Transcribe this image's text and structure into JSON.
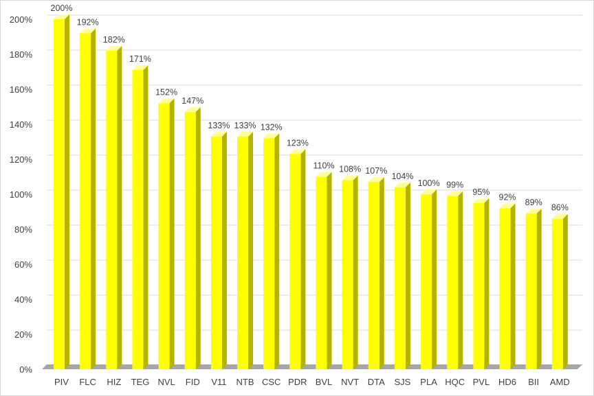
{
  "chart_data": {
    "type": "bar",
    "style": "3d-column",
    "categories": [
      "PIV",
      "FLC",
      "HIZ",
      "TEG",
      "NVL",
      "FID",
      "V11",
      "NTB",
      "CSC",
      "PDR",
      "BVL",
      "NVT",
      "DTA",
      "SJS",
      "PLA",
      "HQC",
      "PVL",
      "HD6",
      "BII",
      "AMD"
    ],
    "values": [
      200,
      192,
      182,
      171,
      152,
      147,
      133,
      133,
      132,
      123,
      110,
      108,
      107,
      104,
      100,
      99,
      95,
      92,
      89,
      86
    ],
    "data_labels": [
      "200%",
      "192%",
      "182%",
      "171%",
      "152%",
      "147%",
      "133%",
      "133%",
      "132%",
      "123%",
      "110%",
      "108%",
      "107%",
      "104%",
      "100%",
      "99%",
      "95%",
      "92%",
      "89%",
      "86%"
    ],
    "title": "",
    "xlabel": "",
    "ylabel": "",
    "ylim": [
      0,
      200
    ],
    "y_ticks": [
      0,
      20,
      40,
      60,
      80,
      100,
      120,
      140,
      160,
      180,
      200
    ],
    "y_tick_labels": [
      "0%",
      "20%",
      "40%",
      "60%",
      "80%",
      "100%",
      "120%",
      "140%",
      "160%",
      "180%",
      "200%"
    ],
    "grid": true,
    "legend": "none",
    "colors": {
      "bar_front": "#ffff00",
      "bar_side": "#b3b300",
      "bar_top": "#ffff99",
      "floor": "#a6a6a6",
      "gridline": "#d9d9d9",
      "text": "#404040"
    }
  }
}
